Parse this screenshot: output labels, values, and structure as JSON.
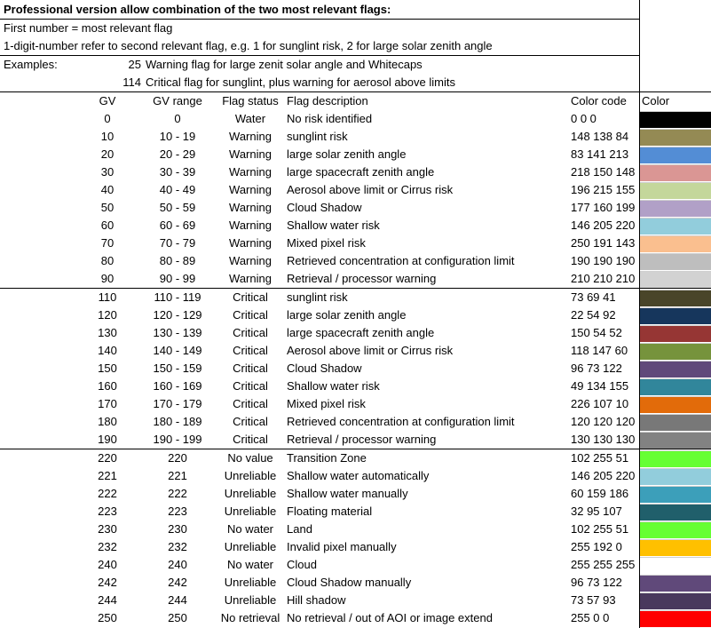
{
  "title": "Professional version allow combination of the two most relevant flags:",
  "notes": [
    "First number = most relevant flag",
    "1-digit-number refer to second relevant flag, e.g. 1 for sunglint risk, 2 for large solar zenith angle"
  ],
  "examples_label": "Examples:",
  "examples": [
    {
      "code": "25",
      "text": "Warning flag for large zenit solar angle and Whitecaps"
    },
    {
      "code": "114",
      "text": "Critical flag for sunglint, plus warning for aerosol above limits"
    }
  ],
  "columns": {
    "gv": "GV",
    "range": "GV range",
    "status": "Flag status",
    "desc": "Flag description",
    "code": "Color code",
    "color": "Color"
  },
  "groups": [
    [
      {
        "gv": "0",
        "range": "0",
        "status": "Water",
        "desc": "No risk identified",
        "code": "0 0 0",
        "color": "#000000"
      },
      {
        "gv": "10",
        "range": "10 - 19",
        "status": "Warning",
        "desc": "sunglint risk",
        "code": "148 138 84",
        "color": "#948A54"
      },
      {
        "gv": "20",
        "range": "20 - 29",
        "status": "Warning",
        "desc": "large solar zenith angle",
        "code": "83 141 213",
        "color": "#538DD5"
      },
      {
        "gv": "30",
        "range": "30 - 39",
        "status": "Warning",
        "desc": "large spacecraft zenith angle",
        "code": "218 150 148",
        "color": "#DA9694"
      },
      {
        "gv": "40",
        "range": "40 - 49",
        "status": "Warning",
        "desc": "Aerosol above limit or Cirrus risk",
        "code": "196 215 155",
        "color": "#C4D79B"
      },
      {
        "gv": "50",
        "range": "50 - 59",
        "status": "Warning",
        "desc": "Cloud Shadow",
        "code": "177 160 199",
        "color": "#B1A0C7"
      },
      {
        "gv": "60",
        "range": "60 - 69",
        "status": "Warning",
        "desc": "Shallow water risk",
        "code": "146 205 220",
        "color": "#92CDDC"
      },
      {
        "gv": "70",
        "range": "70 - 79",
        "status": "Warning",
        "desc": "Mixed pixel risk",
        "code": "250 191 143",
        "color": "#FABF8F"
      },
      {
        "gv": "80",
        "range": "80 - 89",
        "status": "Warning",
        "desc": "Retrieved concentration at configuration limit",
        "code": "190 190 190",
        "color": "#BEBEBE"
      },
      {
        "gv": "90",
        "range": "90 - 99",
        "status": "Warning",
        "desc": "Retrieval / processor warning",
        "code": "210 210 210",
        "color": "#D2D2D2"
      }
    ],
    [
      {
        "gv": "110",
        "range": "110 - 119",
        "status": "Critical",
        "desc": "sunglint risk",
        "code": "73 69 41",
        "color": "#494529"
      },
      {
        "gv": "120",
        "range": "120 - 129",
        "status": "Critical",
        "desc": "large solar zenith angle",
        "code": "22 54 92",
        "color": "#16365C"
      },
      {
        "gv": "130",
        "range": "130 - 139",
        "status": "Critical",
        "desc": "large spacecraft zenith angle",
        "code": "150 54 52",
        "color": "#963634"
      },
      {
        "gv": "140",
        "range": "140 - 149",
        "status": "Critical",
        "desc": "Aerosol above limit or Cirrus risk",
        "code": "118 147 60",
        "color": "#76933C"
      },
      {
        "gv": "150",
        "range": "150 - 159",
        "status": "Critical",
        "desc": "Cloud Shadow",
        "code": "96 73 122",
        "color": "#60497A"
      },
      {
        "gv": "160",
        "range": "160 - 169",
        "status": "Critical",
        "desc": "Shallow water risk",
        "code": "49 134 155",
        "color": "#31869B"
      },
      {
        "gv": "170",
        "range": "170 - 179",
        "status": "Critical",
        "desc": "Mixed pixel risk",
        "code": "226 107 10",
        "color": "#E26B0A"
      },
      {
        "gv": "180",
        "range": "180 - 189",
        "status": "Critical",
        "desc": "Retrieved concentration at configuration limit",
        "code": "120 120 120",
        "color": "#787878"
      },
      {
        "gv": "190",
        "range": "190 - 199",
        "status": "Critical",
        "desc": "Retrieval / processor warning",
        "code": "130 130 130",
        "color": "#828282"
      }
    ],
    [
      {
        "gv": "220",
        "range": "220",
        "status": "No value",
        "desc": "Transition Zone",
        "code": "102 255 51",
        "color": "#66FF33"
      },
      {
        "gv": "221",
        "range": "221",
        "status": "Unreliable",
        "desc": "Shallow water automatically",
        "code": "146 205 220",
        "color": "#92CDDC"
      },
      {
        "gv": "222",
        "range": "222",
        "status": "Unreliable",
        "desc": "Shallow water manually",
        "code": "60 159 186",
        "color": "#3C9FBA"
      },
      {
        "gv": "223",
        "range": "223",
        "status": "Unreliable",
        "desc": "Floating material",
        "code": "32 95 107",
        "color": "#205F6B"
      },
      {
        "gv": "230",
        "range": "230",
        "status": "No water",
        "desc": "Land",
        "code": "102 255 51",
        "color": "#66FF33"
      },
      {
        "gv": "232",
        "range": "232",
        "status": "Unreliable",
        "desc": "Invalid pixel manually",
        "code": "255 192 0",
        "color": "#FFC000"
      },
      {
        "gv": "240",
        "range": "240",
        "status": "No water",
        "desc": "Cloud",
        "code": "255 255 255",
        "color": "#FFFFFF"
      },
      {
        "gv": "242",
        "range": "242",
        "status": "Unreliable",
        "desc": "Cloud Shadow manually",
        "code": "96 73 122",
        "color": "#60497A"
      },
      {
        "gv": "244",
        "range": "244",
        "status": "Unreliable",
        "desc": "Hill shadow",
        "code": "73 57 93",
        "color": "#49395D"
      },
      {
        "gv": "250",
        "range": "250",
        "status": "No retrieval",
        "desc": "No retrieval / out of AOI or image extend",
        "code": "255 0 0",
        "color": "#FF0000"
      }
    ]
  ]
}
